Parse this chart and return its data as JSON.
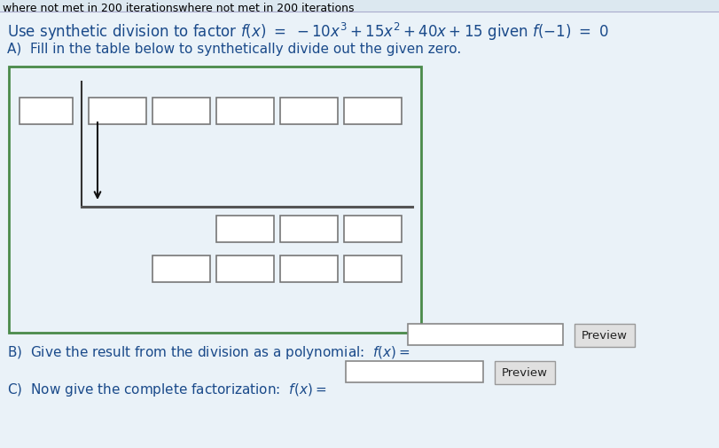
{
  "background_color": "#dce8f0",
  "inner_box_color": "#f0f6fa",
  "title_text": "where not met in 200 iterationswhere not met in 200 iterations",
  "title_color": "#000000",
  "title_fontsize": 9,
  "main_text_1": "Use synthetic division to factor ",
  "main_text_math": "$f(x) = -10x^3 + 15x^2 + 40x + 15$",
  "main_text_2": " given ",
  "main_text_math2": "$f(-1) = 0$",
  "main_fontsize": 12,
  "partA_text": "A)  Fill in the table below to synthetically divide out the given zero.",
  "partA_fontsize": 11,
  "partB_text": "B)  Give the result from the division as a polynomial: ",
  "partB_math": "$f(x) =$",
  "partB_fontsize": 11,
  "partC_text": "C)  Now give the complete factorization: ",
  "partC_math": "$f(x) =$",
  "partC_fontsize": 11,
  "preview_text": "Preview",
  "green_box_color": "#4a8a4a",
  "input_box_edge_color": "#777777",
  "text_color": "#1a4a8a",
  "arrow_color": "#111111",
  "line_color": "#555555"
}
